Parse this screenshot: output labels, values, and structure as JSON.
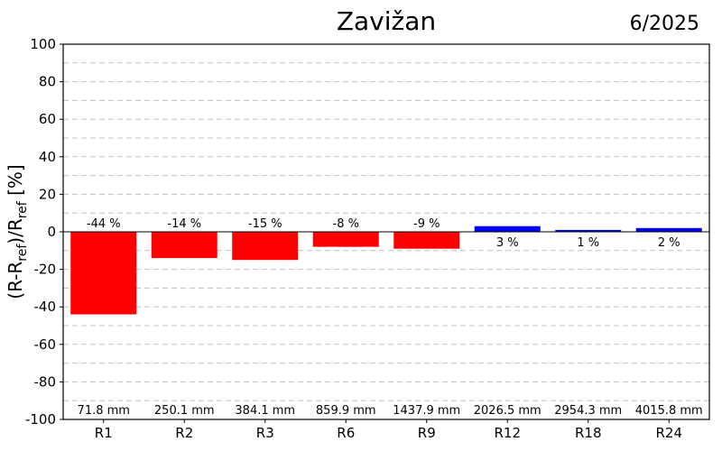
{
  "chart_data": {
    "type": "bar",
    "title": "Zavižan",
    "period": "6/2025",
    "ylabel": {
      "base": "(R-R",
      "sub1": "ref",
      "mid": ")/R",
      "sub2": "ref",
      "end": " [%]"
    },
    "categories": [
      "R1",
      "R2",
      "R3",
      "R6",
      "R9",
      "R12",
      "R18",
      "R24"
    ],
    "values": [
      -44,
      -14,
      -15,
      -8,
      -9,
      3,
      1,
      2
    ],
    "value_labels": [
      "-44 %",
      "-14 %",
      "-15 %",
      "-8 %",
      "-9 %",
      "3 %",
      "1 %",
      "2 %"
    ],
    "amounts": [
      "71.8 mm",
      "250.1 mm",
      "384.1 mm",
      "859.9 mm",
      "1437.9 mm",
      "2026.5 mm",
      "2954.3 mm",
      "4015.8 mm"
    ],
    "ylim": [
      -100,
      100
    ],
    "yticks": [
      "100",
      "80",
      "60",
      "40",
      "20",
      "0",
      "-20",
      "-40",
      "-60",
      "-80",
      "-100"
    ],
    "grid": true,
    "colors": {
      "negative": "#ff0000",
      "positive": "#0000ff",
      "grid": "#c0c0c0",
      "axis": "#000000"
    }
  }
}
